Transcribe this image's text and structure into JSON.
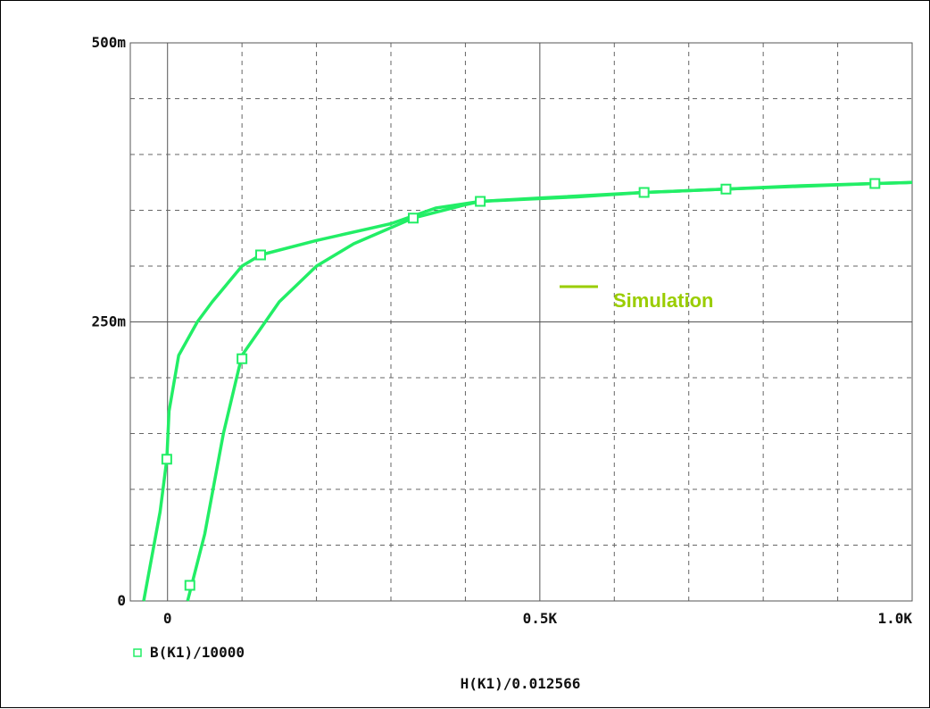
{
  "chart_data": {
    "type": "line",
    "x_label": "H(K1)/0.012566",
    "x_ticks": [
      {
        "value": 0,
        "label": "0"
      },
      {
        "value": 500,
        "label": "0.5K"
      },
      {
        "value": 1000,
        "label": "1.0K"
      }
    ],
    "y_ticks": [
      {
        "value": 0,
        "label": "0"
      },
      {
        "value": 0.25,
        "label": "250m"
      },
      {
        "value": 0.5,
        "label": "500m"
      }
    ],
    "xlim": [
      -50,
      1000
    ],
    "ylim": [
      0,
      0.5
    ],
    "grid": true,
    "legend": {
      "position": "bottom-left",
      "marker": "square",
      "label": "B(K1)/10000"
    },
    "annotation": {
      "label": "Simulation",
      "color": "#9acd00"
    },
    "series_color": "#22ee66",
    "series": [
      {
        "name": "B(K1)/10000",
        "segment": "upper",
        "x": [
          -32,
          -10,
          -1,
          2,
          15,
          40,
          60,
          100,
          125,
          200,
          300,
          360,
          420,
          550,
          640,
          750,
          850,
          950,
          1000
        ],
        "y": [
          0,
          0.08,
          0.127,
          0.17,
          0.22,
          0.25,
          0.268,
          0.3,
          0.31,
          0.323,
          0.338,
          0.352,
          0.358,
          0.362,
          0.366,
          0.369,
          0.372,
          0.374,
          0.375
        ],
        "markers_x": [
          -1,
          125,
          420,
          640,
          750,
          950
        ],
        "markers_y": [
          0.127,
          0.31,
          0.358,
          0.366,
          0.369,
          0.374
        ]
      },
      {
        "name": "B(K1)/10000",
        "segment": "lower",
        "x": [
          27,
          50,
          75,
          100,
          150,
          200,
          250,
          330,
          400,
          420,
          500,
          640,
          750,
          950,
          1000
        ],
        "y": [
          0,
          0.06,
          0.15,
          0.22,
          0.268,
          0.3,
          0.32,
          0.343,
          0.355,
          0.358,
          0.361,
          0.366,
          0.369,
          0.374,
          0.375
        ],
        "markers_x": [
          30,
          100,
          330
        ],
        "markers_y": [
          0.014,
          0.217,
          0.343
        ]
      }
    ]
  }
}
